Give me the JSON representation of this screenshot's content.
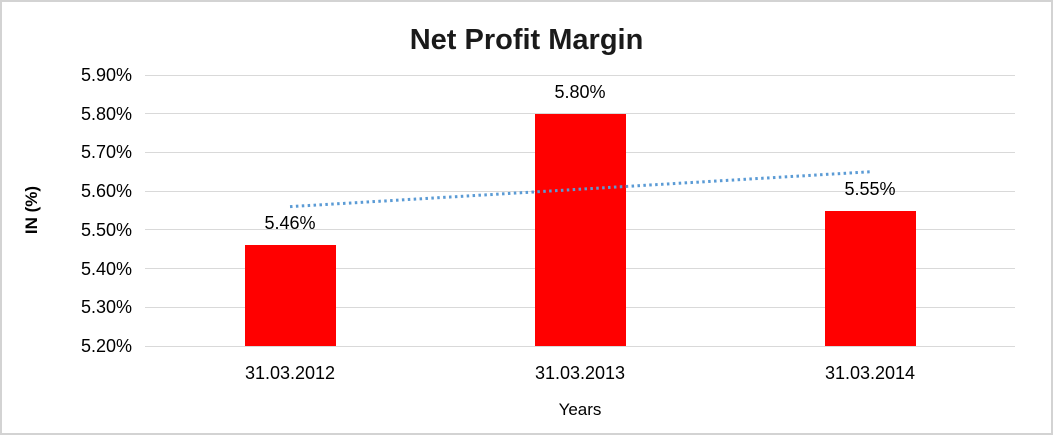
{
  "chart_data": {
    "type": "bar",
    "title": "Net Profit Margin",
    "categories": [
      "31.03.2012",
      "31.03.2013",
      "31.03.2014"
    ],
    "values": [
      5.46,
      5.8,
      5.55
    ],
    "data_labels": [
      "5.46%",
      "5.80%",
      "5.55%"
    ],
    "series_name": "Net Profit Margin",
    "xlabel": "Years",
    "ylabel": "IN (%)",
    "ylim": [
      5.2,
      5.9
    ],
    "ytick_step": 0.1,
    "ytick_labels": [
      "5.90%",
      "5.80%",
      "5.70%",
      "5.60%",
      "5.50%",
      "5.40%",
      "5.30%",
      "5.20%"
    ],
    "ytick_values": [
      5.9,
      5.8,
      5.7,
      5.6,
      5.5,
      5.4,
      5.3,
      5.2
    ],
    "grid": true,
    "legend": "none",
    "bar_color": "#ff0000",
    "gridline_color": "#d9d9d9",
    "frame_border_color": "#d3d3d3",
    "text_color": "#000000",
    "trendline": {
      "type": "linear",
      "style": "dotted",
      "color": "#5b9bd5",
      "start_value": 5.56,
      "end_value": 5.65
    }
  }
}
